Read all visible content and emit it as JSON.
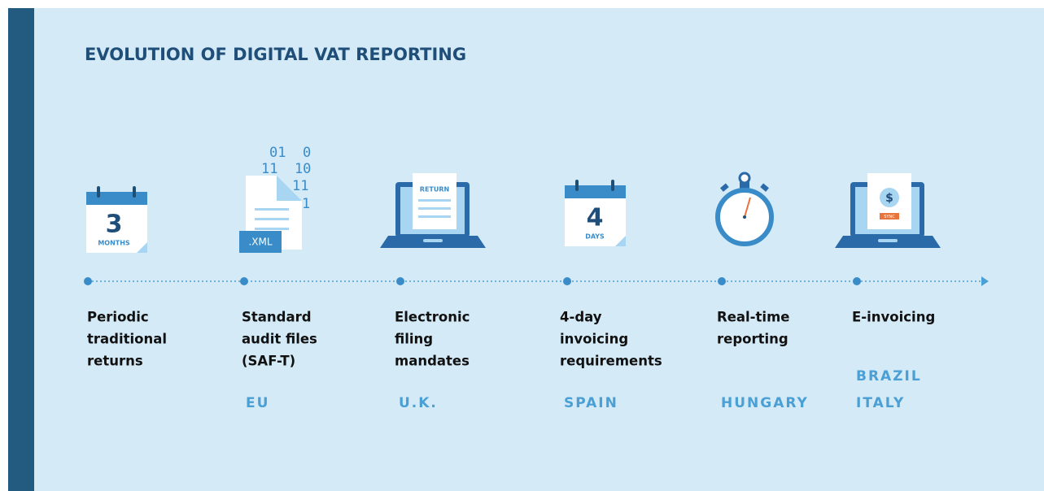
{
  "title": "EVOLUTION OF DIGITAL VAT REPORTING",
  "stages": [
    {
      "icon": {
        "number": "3",
        "unit": "MONTHS"
      },
      "label": [
        "Periodic",
        "traditional",
        "returns"
      ],
      "regions": []
    },
    {
      "icon": {
        "binary": [
          "01  0",
          "11  10",
          "11",
          "1"
        ],
        "badge": ".XML"
      },
      "label": [
        "Standard",
        "audit files",
        "(SAF-T)"
      ],
      "regions": [
        "EU"
      ]
    },
    {
      "icon": {
        "heading": "RETURN"
      },
      "label": [
        "Electronic",
        "filing",
        "mandates"
      ],
      "regions": [
        "U.K."
      ]
    },
    {
      "icon": {
        "number": "4",
        "unit": "DAYS"
      },
      "label": [
        "4-day",
        "invoicing",
        "requirements"
      ],
      "regions": [
        "SPAIN"
      ]
    },
    {
      "label": [
        "Real-time",
        "reporting"
      ],
      "regions": [
        "HUNGARY"
      ]
    },
    {
      "icon": {
        "symbol": "$",
        "badge": "SYNC"
      },
      "label": [
        "E-invoicing"
      ],
      "regions": [
        "BRAZIL",
        "ITALY"
      ]
    }
  ]
}
